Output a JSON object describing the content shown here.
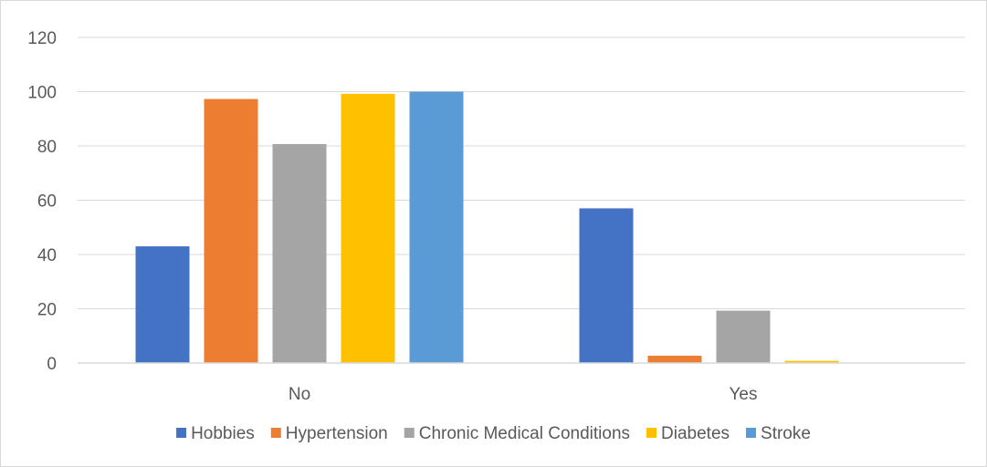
{
  "chart_data": {
    "type": "bar",
    "categories": [
      "No",
      "Yes"
    ],
    "series": [
      {
        "name": "Hobbies",
        "color": "#4472C4",
        "values": [
          43,
          57
        ]
      },
      {
        "name": "Hypertension",
        "color": "#ED7D31",
        "values": [
          97.3,
          2.7
        ]
      },
      {
        "name": "Chronic Medical Conditions",
        "color": "#A5A5A5",
        "values": [
          80.7,
          19.3
        ]
      },
      {
        "name": "Diabetes",
        "color": "#FFC000",
        "values": [
          99.2,
          0.8
        ]
      },
      {
        "name": "Stroke",
        "color": "#5B9BD5",
        "values": [
          100,
          0
        ]
      }
    ],
    "ylim": [
      0,
      120
    ],
    "yticks": [
      "0",
      "20",
      "40",
      "60",
      "80",
      "100",
      "120"
    ],
    "grid": true,
    "legend": "bottom"
  }
}
